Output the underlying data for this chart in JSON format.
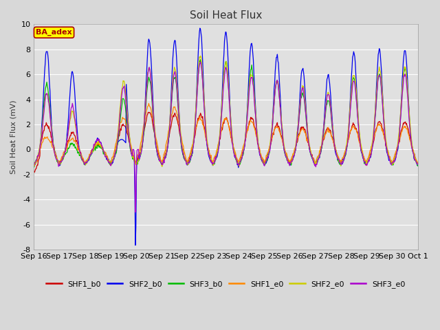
{
  "title": "Soil Heat Flux",
  "ylabel": "Soil Heat Flux (mV)",
  "ylim": [
    -8,
    10
  ],
  "annotation_text": "BA_adex",
  "annotation_bg": "#ffff00",
  "annotation_border": "#aa0000",
  "series": [
    {
      "label": "SHF1_b0",
      "color": "#cc0000"
    },
    {
      "label": "SHF2_b0",
      "color": "#0000ee"
    },
    {
      "label": "SHF3_b0",
      "color": "#00bb00"
    },
    {
      "label": "SHF1_e0",
      "color": "#ff8800"
    },
    {
      "label": "SHF2_e0",
      "color": "#cccc00"
    },
    {
      "label": "SHF3_e0",
      "color": "#aa00cc"
    }
  ],
  "xtick_labels": [
    "Sep 16",
    "Sep 17",
    "Sep 18",
    "Sep 19",
    "Sep 20",
    "Sep 21",
    "Sep 22",
    "Sep 23",
    "Sep 24",
    "Sep 25",
    "Sep 26",
    "Sep 27",
    "Sep 28",
    "Sep 29",
    "Sep 30",
    "Oct 1"
  ],
  "ytick_values": [
    -8,
    -6,
    -4,
    -2,
    0,
    2,
    4,
    6,
    8,
    10
  ],
  "fig_bg": "#d8d8d8",
  "ax_bg": "#e0e0e0",
  "grid_color": "#ffffff",
  "days": 15,
  "pts_per_day": 48
}
